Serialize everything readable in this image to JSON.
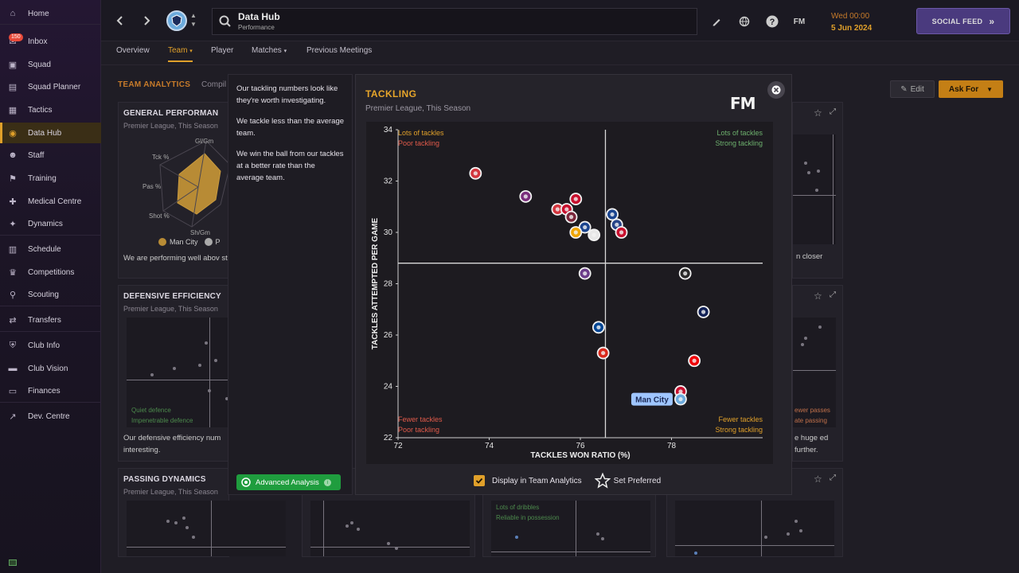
{
  "sidebar": {
    "items": [
      {
        "label": "Home",
        "icon": "home-icon"
      },
      {
        "label": "Inbox",
        "icon": "inbox-icon",
        "badge": "150"
      },
      {
        "label": "Squad",
        "icon": "shirt-icon"
      },
      {
        "label": "Squad Planner",
        "icon": "clipboard-icon"
      },
      {
        "label": "Tactics",
        "icon": "tactics-board-icon"
      },
      {
        "label": "Data Hub",
        "icon": "data-hub-icon"
      },
      {
        "label": "Staff",
        "icon": "people-icon"
      },
      {
        "label": "Training",
        "icon": "training-icon"
      },
      {
        "label": "Medical Centre",
        "icon": "medical-kit-icon"
      },
      {
        "label": "Dynamics",
        "icon": "dynamics-icon"
      },
      {
        "label": "Schedule",
        "icon": "calendar-icon"
      },
      {
        "label": "Competitions",
        "icon": "trophy-icon"
      },
      {
        "label": "Scouting",
        "icon": "magnifier-icon"
      },
      {
        "label": "Transfers",
        "icon": "transfer-arrows-icon"
      },
      {
        "label": "Club Info",
        "icon": "shield-icon"
      },
      {
        "label": "Club Vision",
        "icon": "briefcase-icon"
      },
      {
        "label": "Finances",
        "icon": "money-icon"
      },
      {
        "label": "Dev. Centre",
        "icon": "trend-up-icon"
      }
    ]
  },
  "header": {
    "title": "Data Hub",
    "subtitle": "Performance",
    "date_line1": "Wed 00:00",
    "date_line2": "5 Jun 2024",
    "social_feed": "SOCIAL FEED",
    "fm_badge": "FM"
  },
  "tabs": [
    "Overview",
    "Team",
    "Player",
    "Matches",
    "Previous Meetings"
  ],
  "analytics": {
    "title": "TEAM ANALYTICS",
    "subtitle": "Compil",
    "edit_label": "Edit",
    "ask_label": "Ask For"
  },
  "cards": {
    "general": {
      "title": "GENERAL PERFORMAN",
      "subtitle": "Premier League, This Season",
      "radar_labels": [
        "Gl/Gm",
        "Tck %",
        "Pas %",
        "Shot %",
        "Sh/Gm"
      ],
      "legend_a": "Man City",
      "legend_b": "P",
      "text": "We are performing well abov statistically, which is great t"
    },
    "defensive": {
      "title": "DEFENSIVE EFFICIENCY",
      "subtitle": "Premier League, This Season",
      "q1": "Quiet defence",
      "q2": "Impenetrable defence",
      "text": "Our defensive efficiency num interesting."
    },
    "passing": {
      "title": "PASSING DYNAMICS",
      "subtitle": "Premier League, This Season"
    },
    "right_top_text": "n closer",
    "right_mid_q1": "ewer passes",
    "right_mid_q2": "ate passing",
    "right_mid_text": "e huge ed further.",
    "bottom_mid_q1": "Lots of dribbles",
    "bottom_mid_q2": "Reliable in possession"
  },
  "insights": [
    "Our tackling numbers look like they're worth investigating.",
    "We tackle less than the average team.",
    "We win the ball from our tackles at a better rate than the average team."
  ],
  "advanced_analysis": "Advanced Analysis",
  "modal": {
    "title": "TACKLING",
    "subtitle": "Premier League, This Season",
    "logo": "FM",
    "display_label": "Display in Team Analytics",
    "preferred_label": "Set Preferred",
    "colors": {
      "accent": "#e6a52a",
      "good": "#6db06d",
      "bad": "#e05a4a",
      "mixed": "#e0a02a",
      "highlight": "#9fc6ff"
    }
  },
  "chart_data": {
    "type": "scatter",
    "title": "TACKLING",
    "subtitle": "Premier League, This Season",
    "xlabel": "TACKLES WON RATIO (%)",
    "ylabel": "TACKLES ATTEMPTED PER GAME",
    "xlim": [
      72,
      80
    ],
    "ylim": [
      22,
      34
    ],
    "xticks": [
      "72",
      "74",
      "76",
      "78"
    ],
    "yticks": [
      "22",
      "24",
      "26",
      "28",
      "30",
      "32",
      "34"
    ],
    "avg_x": 76.55,
    "avg_y": 28.8,
    "quadrants": {
      "top_left": [
        "Lots of tackles",
        "Poor tackling"
      ],
      "top_right": [
        "Lots of tackles",
        "Strong tackling"
      ],
      "bottom_left": [
        "Fewer tackles",
        "Poor tackling"
      ],
      "bottom_right": [
        "Fewer tackles",
        "Strong tackling"
      ]
    },
    "highlight_label": "Man City",
    "points": [
      {
        "x": 73.7,
        "y": 32.3,
        "color": "#d3363e"
      },
      {
        "x": 74.8,
        "y": 31.4,
        "color": "#7a2e7c"
      },
      {
        "x": 75.9,
        "y": 31.3,
        "color": "#c8102e"
      },
      {
        "x": 75.5,
        "y": 30.9,
        "color": "#d3363e"
      },
      {
        "x": 75.7,
        "y": 30.9,
        "color": "#c8102e"
      },
      {
        "x": 75.8,
        "y": 30.6,
        "color": "#7a263a"
      },
      {
        "x": 76.1,
        "y": 30.2,
        "color": "#1b458f"
      },
      {
        "x": 75.9,
        "y": 30.0,
        "color": "#f0a500"
      },
      {
        "x": 76.3,
        "y": 29.9,
        "color": "#e8e8e8"
      },
      {
        "x": 76.7,
        "y": 30.7,
        "color": "#1b458f"
      },
      {
        "x": 76.8,
        "y": 30.3,
        "color": "#274488"
      },
      {
        "x": 76.9,
        "y": 30.0,
        "color": "#c8102e"
      },
      {
        "x": 76.1,
        "y": 28.4,
        "color": "#6c3d8a"
      },
      {
        "x": 78.3,
        "y": 28.4,
        "color": "#2a2a2a"
      },
      {
        "x": 78.7,
        "y": 26.9,
        "color": "#132257"
      },
      {
        "x": 76.4,
        "y": 26.3,
        "color": "#034694"
      },
      {
        "x": 76.5,
        "y": 25.3,
        "color": "#da291c"
      },
      {
        "x": 78.5,
        "y": 25.0,
        "color": "#ef0107"
      },
      {
        "x": 78.2,
        "y": 23.8,
        "color": "#c8102e"
      },
      {
        "x": 78.2,
        "y": 23.5,
        "color": "#6cabdd",
        "highlight": true
      }
    ]
  }
}
